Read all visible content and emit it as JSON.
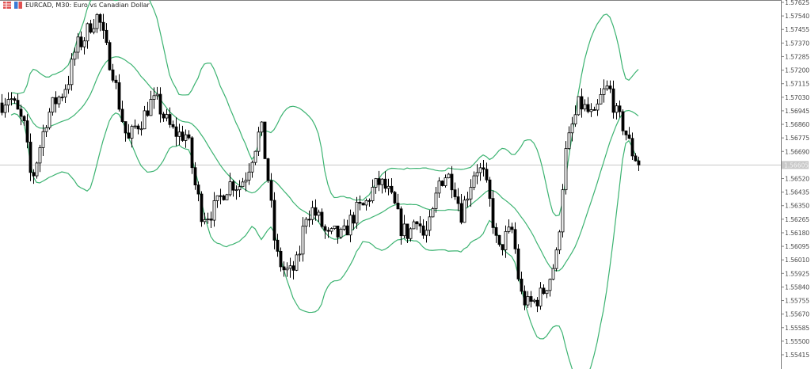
{
  "header": {
    "symbol_title": "EURCAD, M30:  Euro vs Canadian Dollar",
    "icons": [
      "grid-icon",
      "one-click-trading-icon"
    ]
  },
  "chart_data": {
    "type": "candlestick",
    "symbol": "EURCAD",
    "timeframe": "M30",
    "indicator": "Bollinger Bands",
    "colors": {
      "bands": "#3cb371",
      "candles": "#000000",
      "current_price_line": "#c0c0c0",
      "axis": "#808080"
    },
    "y_ticks": [
      "1.57625",
      "1.57540",
      "1.57455",
      "1.57370",
      "1.57285",
      "1.57200",
      "1.57115",
      "1.57030",
      "1.56945",
      "1.56860",
      "1.56775",
      "1.56690",
      "1.56520",
      "1.56435",
      "1.56350",
      "1.56265",
      "1.56180",
      "1.56095",
      "1.56010",
      "1.55925",
      "1.55840",
      "1.55755",
      "1.55670",
      "1.55585",
      "1.55500",
      "1.55415"
    ],
    "ylim": [
      1.55375,
      1.5765
    ],
    "current_price": 1.56605,
    "closes": [
      1.56994,
      1.57044,
      1.56944,
      1.56845,
      1.56497,
      1.56696,
      1.56894,
      1.56994,
      1.57044,
      1.57143,
      1.57342,
      1.57391,
      1.57491,
      1.57541,
      1.57342,
      1.57193,
      1.56944,
      1.56745,
      1.56845,
      1.56894,
      1.56994,
      1.56994,
      1.56894,
      1.5682,
      1.56795,
      1.56795,
      1.56497,
      1.56298,
      1.56298,
      1.56348,
      1.56447,
      1.56497,
      1.56472,
      1.56547,
      1.56696,
      1.56845,
      1.56497,
      1.5605,
      1.5595,
      1.55925,
      1.56,
      1.56298,
      1.56323,
      1.56248,
      1.56149,
      1.56174,
      1.56149,
      1.56248,
      1.56323,
      1.56348,
      1.56447,
      1.56497,
      1.56447,
      1.56348,
      1.56199,
      1.56174,
      1.56298,
      1.56149,
      1.56248,
      1.56497,
      1.56547,
      1.56497,
      1.56298,
      1.56447,
      1.56596,
      1.56547,
      1.56348,
      1.5605,
      1.56149,
      1.56199,
      1.55801,
      1.55727,
      1.55751,
      1.55801,
      1.559,
      1.5605,
      1.56646,
      1.56845,
      1.56994,
      1.56944,
      1.56894,
      1.57044,
      1.57093,
      1.56919,
      1.56845,
      1.56696,
      1.56621
    ]
  }
}
